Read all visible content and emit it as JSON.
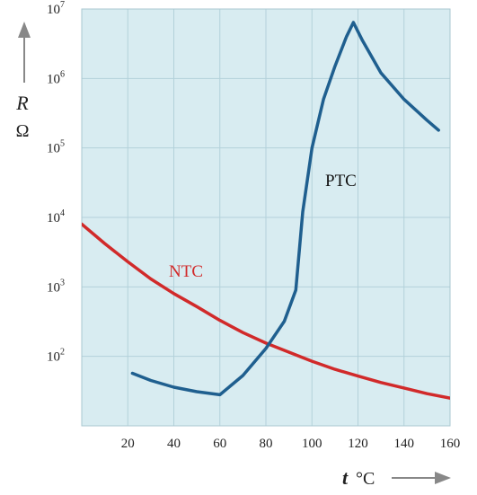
{
  "chart_data": {
    "type": "line",
    "x_axis": {
      "label": "t",
      "unit": "°C",
      "ticks": [
        "20",
        "40",
        "60",
        "80",
        "100",
        "120",
        "140",
        "160"
      ],
      "range": [
        0,
        160
      ]
    },
    "y_axis": {
      "label": "R",
      "unit": "Ω",
      "scale": "log",
      "range": [
        10,
        10000000
      ],
      "ticks": [
        {
          "base": "10",
          "exp": "2",
          "value": 100
        },
        {
          "base": "10",
          "exp": "3",
          "value": 1000
        },
        {
          "base": "10",
          "exp": "4",
          "value": 10000
        },
        {
          "base": "10",
          "exp": "5",
          "value": 100000
        },
        {
          "base": "10",
          "exp": "6",
          "value": 1000000
        },
        {
          "base": "10",
          "exp": "7",
          "value": 10000000
        }
      ]
    },
    "grid": true,
    "series": [
      {
        "name": "NTC",
        "color": "#d12a2a",
        "points": [
          [
            0,
            8000
          ],
          [
            10,
            4200
          ],
          [
            20,
            2300
          ],
          [
            30,
            1300
          ],
          [
            40,
            800
          ],
          [
            50,
            520
          ],
          [
            60,
            330
          ],
          [
            70,
            220
          ],
          [
            80,
            155
          ],
          [
            90,
            115
          ],
          [
            100,
            85
          ],
          [
            110,
            65
          ],
          [
            120,
            52
          ],
          [
            130,
            42
          ],
          [
            140,
            35
          ],
          [
            150,
            29
          ],
          [
            160,
            25
          ]
        ]
      },
      {
        "name": "PTC",
        "color": "#1f5f8f",
        "points": [
          [
            22,
            57
          ],
          [
            30,
            45
          ],
          [
            40,
            36
          ],
          [
            50,
            31
          ],
          [
            60,
            28
          ],
          [
            70,
            53
          ],
          [
            80,
            130
          ],
          [
            88,
            320
          ],
          [
            93,
            900
          ],
          [
            96,
            12000
          ],
          [
            100,
            100000
          ],
          [
            105,
            500000
          ],
          [
            110,
            1500000
          ],
          [
            115,
            4000000
          ],
          [
            118,
            6400000
          ],
          [
            122,
            3500000
          ],
          [
            130,
            1200000
          ],
          [
            140,
            500000
          ],
          [
            150,
            250000
          ],
          [
            155,
            180000
          ]
        ]
      }
    ],
    "annotations": [
      {
        "text": "NTC",
        "color": "#d12a2a"
      },
      {
        "text": "PTC",
        "color": "#111111"
      }
    ]
  }
}
